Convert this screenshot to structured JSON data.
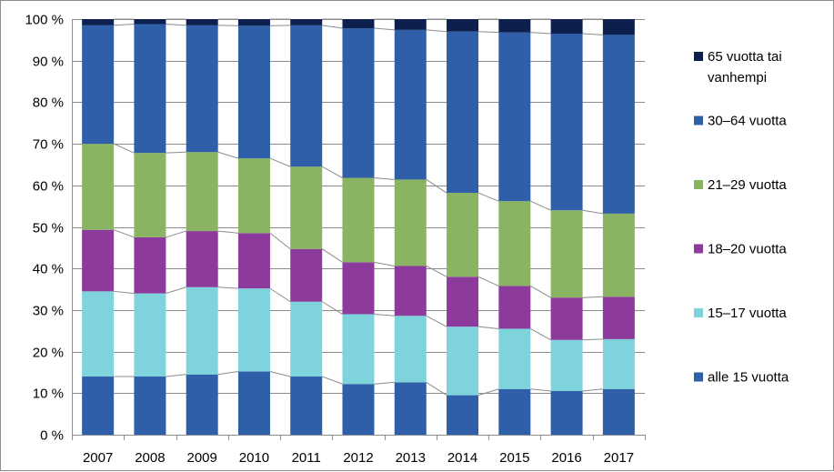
{
  "chart_data": {
    "type": "bar",
    "stacked": true,
    "percent": true,
    "categories": [
      "2007",
      "2008",
      "2009",
      "2010",
      "2011",
      "2012",
      "2013",
      "2014",
      "2015",
      "2016",
      "2017"
    ],
    "ylim": [
      0,
      100
    ],
    "yticks": [
      0,
      10,
      20,
      30,
      40,
      50,
      60,
      70,
      80,
      90,
      100
    ],
    "ytick_labels": [
      "0 %",
      "10 %",
      "20 %",
      "30 %",
      "40 %",
      "50 %",
      "60 %",
      "70 %",
      "80 %",
      "90 %",
      "100 %"
    ],
    "grid": true,
    "legend_position": "right",
    "series_lines": true,
    "series": [
      {
        "name": "alle 15 vuotta",
        "color": "#2e5fa8",
        "values": [
          14,
          14,
          14.5,
          15.2,
          14,
          12.2,
          12.6,
          9.5,
          11,
          10.5,
          11
        ]
      },
      {
        "name": "15–17 vuotta",
        "color": "#7fd3dc",
        "values": [
          20.5,
          20,
          21,
          20,
          18,
          16.8,
          16,
          16.5,
          14.5,
          12.3,
          12
        ]
      },
      {
        "name": "18–20 vuotta",
        "color": "#8d3a9d",
        "values": [
          14.8,
          13.5,
          13.5,
          13.3,
          12.7,
          12.5,
          12,
          12,
          10.3,
          10.2,
          10.2
        ]
      },
      {
        "name": "21–29 vuotta",
        "color": "#8ab463",
        "values": [
          20.7,
          20.3,
          19,
          18,
          19.8,
          20.3,
          20.8,
          20.2,
          20.4,
          21,
          20
        ]
      },
      {
        "name": "30–64 vuotta",
        "color": "#2e5fa8",
        "values": [
          28.5,
          31,
          30.5,
          31.9,
          34,
          36,
          36,
          38.8,
          40.6,
          42.5,
          43
        ]
      },
      {
        "name": "65 vuotta tai vanhempi",
        "color": "#0d1f4c",
        "values": [
          1.5,
          1.2,
          1.5,
          1.6,
          1.5,
          2.2,
          2.6,
          3,
          3.2,
          3.5,
          3.8
        ]
      }
    ],
    "legend": [
      {
        "lines": [
          "65 vuotta tai",
          "vanhempi"
        ],
        "series_index": 5
      },
      {
        "lines": [
          "30–64 vuotta"
        ],
        "series_index": 4
      },
      {
        "lines": [
          "21–29 vuotta"
        ],
        "series_index": 3
      },
      {
        "lines": [
          "18–20 vuotta"
        ],
        "series_index": 2
      },
      {
        "lines": [
          "15–17 vuotta"
        ],
        "series_index": 1
      },
      {
        "lines": [
          "alle 15 vuotta"
        ],
        "series_index": 0
      }
    ]
  }
}
